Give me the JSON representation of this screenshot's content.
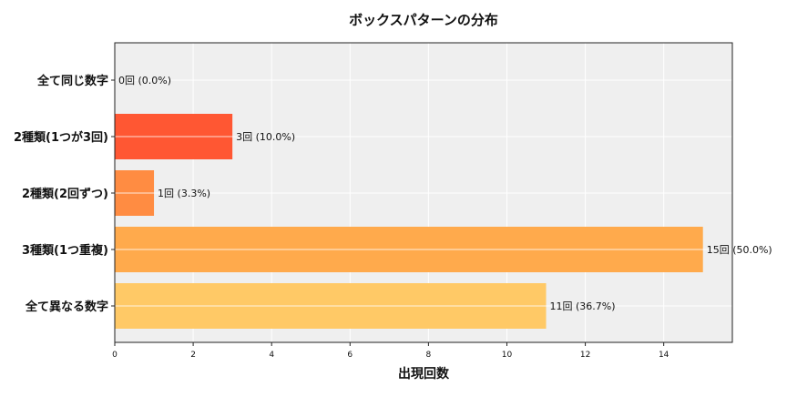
{
  "chart_data": {
    "type": "bar",
    "orientation": "horizontal",
    "title": "ボックスパターンの分布",
    "xlabel": "出現回数",
    "ylabel": "",
    "categories": [
      "全て同じ数字",
      "2種類(1つが3回)",
      "2種類(2回ずつ)",
      "3種類(1つ重複)",
      "全て異なる数字"
    ],
    "values": [
      0,
      3,
      1,
      15,
      11
    ],
    "data_labels": [
      "0回 (0.0%)",
      "3回 (10.0%)",
      "1回 (3.3%)",
      "15回 (50.0%)",
      "11回 (36.7%)"
    ],
    "colors": [
      "#FF3D1F",
      "#FF5733",
      "#FF8C42",
      "#FFAA4C",
      "#FFC966"
    ],
    "xlim": [
      0,
      15.75
    ],
    "xticks": [
      0,
      2,
      4,
      6,
      8,
      10,
      12,
      14
    ],
    "grid": true,
    "background": "#EFEFEF"
  }
}
